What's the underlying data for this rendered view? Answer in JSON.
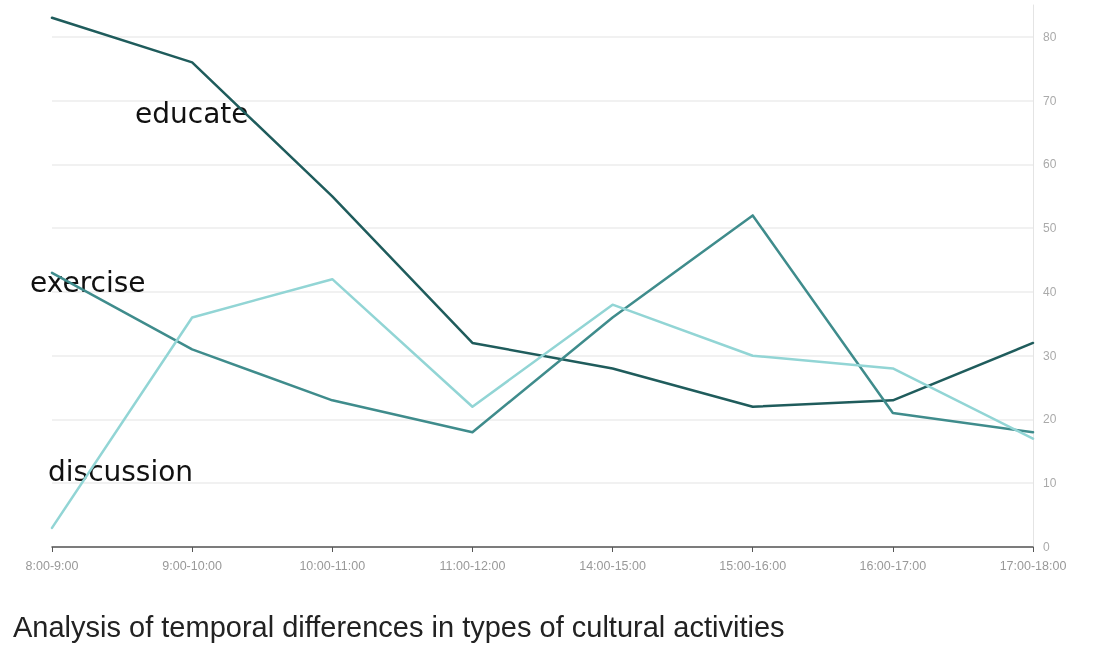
{
  "chart_data": {
    "type": "line",
    "title": "Analysis of temporal differences in types of cultural activities",
    "categories": [
      "8:00-9:00",
      "9:00-10:00",
      "10:00-11:00",
      "11:00-12:00",
      "14:00-15:00",
      "15:00-16:00",
      "16:00-17:00",
      "17:00-18:00"
    ],
    "series": [
      {
        "name": "educate",
        "color": "#1f5c5c",
        "values": [
          83,
          76,
          55,
          32,
          28,
          22,
          23,
          32
        ]
      },
      {
        "name": "exercise",
        "color": "#3f8c8c",
        "values": [
          43,
          31,
          23,
          18,
          36,
          52,
          21,
          18
        ]
      },
      {
        "name": "discussion",
        "color": "#92d5d5",
        "values": [
          3,
          36,
          42,
          22,
          38,
          30,
          28,
          17
        ]
      }
    ],
    "ylim": [
      0,
      85
    ],
    "yticks": [
      0,
      10,
      20,
      30,
      40,
      50,
      60,
      70,
      80
    ],
    "grid": "y",
    "legend": false,
    "marker": "none",
    "line_style": "solid"
  }
}
